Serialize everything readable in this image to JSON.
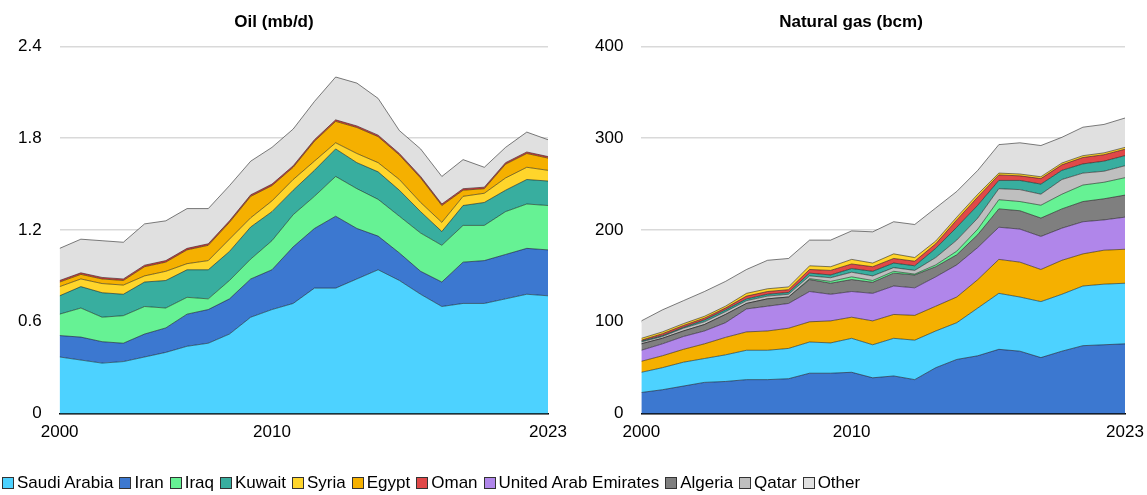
{
  "chart_data": [
    {
      "type": "area",
      "title": "Oil (mb/d)",
      "stacked": true,
      "grid": "y",
      "legend": "bottom",
      "x": [
        2000,
        2001,
        2002,
        2003,
        2004,
        2005,
        2006,
        2007,
        2008,
        2009,
        2010,
        2011,
        2012,
        2013,
        2014,
        2015,
        2016,
        2017,
        2018,
        2019,
        2020,
        2021,
        2022,
        2023
      ],
      "xlim": [
        2000,
        2023
      ],
      "xticks": [
        2000,
        2010,
        2023
      ],
      "ylim": [
        0,
        2.4
      ],
      "yticks": [
        0,
        0.6,
        1.2,
        1.8,
        2.4
      ],
      "series": [
        {
          "name": "Saudi Arabia",
          "color": "#4dd2ff",
          "values": [
            0.37,
            0.35,
            0.33,
            0.34,
            0.37,
            0.4,
            0.44,
            0.46,
            0.52,
            0.63,
            0.68,
            0.72,
            0.82,
            0.82,
            0.88,
            0.94,
            0.87,
            0.78,
            0.7,
            0.72,
            0.72,
            0.75,
            0.78,
            0.77
          ]
        },
        {
          "name": "Iran",
          "color": "#3c78d0",
          "values": [
            0.14,
            0.15,
            0.14,
            0.12,
            0.15,
            0.16,
            0.21,
            0.22,
            0.23,
            0.25,
            0.26,
            0.37,
            0.39,
            0.47,
            0.33,
            0.22,
            0.18,
            0.15,
            0.16,
            0.27,
            0.28,
            0.29,
            0.3,
            0.3
          ]
        },
        {
          "name": "Iraq",
          "color": "#66f294",
          "values": [
            0.14,
            0.19,
            0.16,
            0.18,
            0.18,
            0.13,
            0.11,
            0.07,
            0.12,
            0.13,
            0.19,
            0.21,
            0.21,
            0.26,
            0.26,
            0.24,
            0.24,
            0.25,
            0.24,
            0.24,
            0.23,
            0.28,
            0.29,
            0.29
          ]
        },
        {
          "name": "Kuwait",
          "color": "#38ae9f",
          "values": [
            0.12,
            0.14,
            0.16,
            0.14,
            0.16,
            0.18,
            0.18,
            0.19,
            0.19,
            0.21,
            0.19,
            0.16,
            0.17,
            0.18,
            0.17,
            0.18,
            0.17,
            0.14,
            0.09,
            0.13,
            0.15,
            0.14,
            0.16,
            0.16
          ]
        },
        {
          "name": "Syria",
          "color": "#ffd52b",
          "values": [
            0.06,
            0.05,
            0.06,
            0.06,
            0.04,
            0.06,
            0.04,
            0.06,
            0.08,
            0.06,
            0.07,
            0.07,
            0.06,
            0.04,
            0.06,
            0.06,
            0.07,
            0.06,
            0.06,
            0.06,
            0.06,
            0.08,
            0.08,
            0.07
          ]
        },
        {
          "name": "Egypt",
          "color": "#f5b000",
          "values": [
            0.03,
            0.03,
            0.03,
            0.03,
            0.06,
            0.06,
            0.09,
            0.1,
            0.11,
            0.14,
            0.1,
            0.08,
            0.13,
            0.14,
            0.17,
            0.17,
            0.16,
            0.16,
            0.11,
            0.04,
            0.03,
            0.09,
            0.09,
            0.08
          ]
        },
        {
          "name": "Oman",
          "color": "#e04848",
          "values": [
            0.01,
            0.01,
            0.01,
            0.01,
            0.01,
            0.01,
            0.01,
            0.01,
            0.01,
            0.01,
            0.01,
            0.01,
            0.01,
            0.01,
            0.01,
            0.01,
            0.01,
            0.01,
            0.01,
            0.01,
            0.01,
            0.01,
            0.01,
            0.01
          ]
        },
        {
          "name": "Other",
          "color": "#e0e0e0",
          "values": [
            0.21,
            0.22,
            0.24,
            0.24,
            0.27,
            0.26,
            0.26,
            0.23,
            0.23,
            0.22,
            0.24,
            0.24,
            0.25,
            0.28,
            0.28,
            0.24,
            0.15,
            0.18,
            0.18,
            0.19,
            0.13,
            0.1,
            0.13,
            0.11
          ]
        }
      ]
    },
    {
      "type": "area",
      "title": "Natural gas (bcm)",
      "stacked": true,
      "grid": "y",
      "legend": "bottom",
      "x": [
        2000,
        2001,
        2002,
        2003,
        2004,
        2005,
        2006,
        2007,
        2008,
        2009,
        2010,
        2011,
        2012,
        2013,
        2014,
        2015,
        2016,
        2017,
        2018,
        2019,
        2020,
        2021,
        2022,
        2023
      ],
      "xlim": [
        2000,
        2023
      ],
      "xticks": [
        2000,
        2010,
        2023
      ],
      "ylim": [
        0,
        400
      ],
      "yticks": [
        0,
        100,
        200,
        300,
        400
      ],
      "series": [
        {
          "name": "Iran",
          "color": "#3c78d0",
          "values": [
            23,
            26,
            30,
            34,
            35,
            37,
            37,
            38,
            44,
            44,
            45,
            39,
            41,
            37,
            50,
            59,
            63,
            70,
            68,
            61,
            68,
            74,
            75,
            76
          ]
        },
        {
          "name": "Saudi Arabia",
          "color": "#4dd2ff",
          "values": [
            22,
            24,
            26,
            26,
            29,
            32,
            32,
            33,
            34,
            33,
            37,
            36,
            41,
            43,
            40,
            40,
            52,
            61,
            59,
            61,
            62,
            65,
            66,
            66
          ]
        },
        {
          "name": "Egypt",
          "color": "#f5b000",
          "values": [
            12,
            13,
            14,
            16,
            19,
            20,
            21,
            22,
            22,
            24,
            23,
            26,
            26,
            27,
            27,
            28,
            31,
            37,
            38,
            35,
            37,
            35,
            37,
            37
          ]
        },
        {
          "name": "United Arab Emirates",
          "color": "#b086ea",
          "values": [
            12,
            13,
            14,
            14,
            16,
            25,
            27,
            27,
            33,
            29,
            28,
            30,
            31,
            30,
            32,
            35,
            35,
            35,
            36,
            36,
            35,
            35,
            33,
            35
          ]
        },
        {
          "name": "Algeria",
          "color": "#7f7f7f",
          "values": [
            7,
            6,
            6,
            7,
            9,
            6,
            8,
            7,
            13,
            12,
            13,
            12,
            14,
            14,
            11,
            11,
            14,
            20,
            20,
            20,
            21,
            22,
            23,
            24
          ]
        },
        {
          "name": "Iraq",
          "color": "#66f294",
          "values": [
            0,
            0,
            0,
            0,
            0,
            0,
            0,
            0,
            1,
            2,
            3,
            2,
            2,
            1,
            2,
            4,
            6,
            10,
            10,
            14,
            16,
            18,
            18,
            19
          ]
        },
        {
          "name": "Qatar",
          "color": "#bfbfbf",
          "values": [
            2,
            2,
            3,
            3,
            3,
            3,
            3,
            3,
            3,
            4,
            5,
            5,
            4,
            4,
            8,
            12,
            12,
            12,
            13,
            12,
            16,
            13,
            12,
            13
          ]
        },
        {
          "name": "Kuwait",
          "color": "#38ae9f",
          "values": [
            1,
            1,
            1,
            2,
            2,
            2,
            2,
            2,
            3,
            3,
            4,
            5,
            5,
            5,
            10,
            14,
            14,
            9,
            10,
            11,
            10,
            10,
            11,
            11
          ]
        },
        {
          "name": "Oman",
          "color": "#e04848",
          "values": [
            1,
            2,
            2,
            2,
            2,
            3,
            3,
            3,
            4,
            5,
            5,
            5,
            5,
            5,
            5,
            8,
            9,
            6,
            5,
            6,
            6,
            7,
            7,
            7
          ]
        },
        {
          "name": "Syria",
          "color": "#ffd52b",
          "values": [
            2,
            2,
            2,
            2,
            2,
            3,
            3,
            3,
            4,
            4,
            5,
            4,
            5,
            4,
            3,
            3,
            3,
            2,
            2,
            2,
            2,
            2,
            2,
            2
          ]
        },
        {
          "name": "Other",
          "color": "#e0e0e0",
          "values": [
            19,
            24,
            25,
            27,
            27,
            26,
            31,
            31,
            28,
            29,
            31,
            34,
            35,
            36,
            36,
            28,
            26,
            31,
            34,
            34,
            28,
            31,
            31,
            32
          ]
        }
      ]
    }
  ]
}
